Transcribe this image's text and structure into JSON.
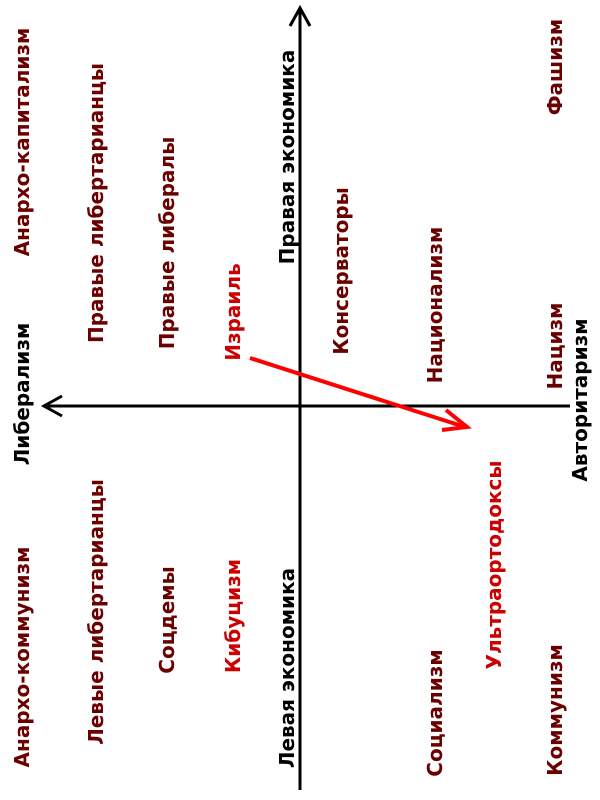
{
  "colors": {
    "ideology_text": "#6b0000",
    "highlight_text": "#cc0000",
    "axis_text": "#000000",
    "axis_line": "#000000",
    "arrow": "#ff0000"
  },
  "axes": {
    "top": "Правая экономика",
    "bottom": "Левая экономика",
    "left": "Либерализм",
    "right": "Авторитаризм"
  },
  "labels": {
    "anarcho_capitalism": "Анархо-капитализм",
    "right_libertarians": "Правые либертарианцы",
    "right_liberals": "Правые либералы",
    "israel": "Израиль",
    "conservatives": "Консерваторы",
    "nationalism": "Национализм",
    "fascism": "Фашизм",
    "nazism": "Нацизм",
    "anarcho_communism": "Анархо-коммунизм",
    "left_libertarians": "Левые либертарианцы",
    "social_democrats": "Соцдемы",
    "kibbutzism": "Кибуцизм",
    "socialism": "Социализм",
    "ultra_orthodox": "Ультраортодоксы",
    "communism": "Коммунизм"
  }
}
